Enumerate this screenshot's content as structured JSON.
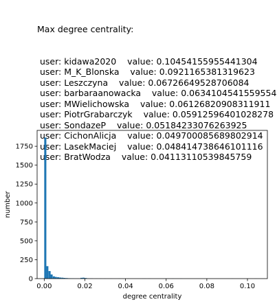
{
  "header": {
    "title": "Max degree centrality:",
    "entries": [
      {
        "user_label": "user:",
        "user": "kidawa2020",
        "value_label": "value:",
        "value": "0.10454155955441304"
      },
      {
        "user_label": "user:",
        "user": "M_K_Blonska",
        "value_label": "value:",
        "value": "0.0921165381319623"
      },
      {
        "user_label": "user:",
        "user": "Leszczyna",
        "value_label": "value:",
        "value": "0.06726649528706084"
      },
      {
        "user_label": "user:",
        "user": "barbaraanowacka",
        "value_label": "value:",
        "value": "0.06341045415595545"
      },
      {
        "user_label": "user:",
        "user": "MWielichowska",
        "value_label": "value:",
        "value": "0.06126820908311911"
      },
      {
        "user_label": "user:",
        "user": "PiotrGrabarczyk",
        "value_label": "value:",
        "value": "0.05912596401028278"
      },
      {
        "user_label": "user:",
        "user": "SondazeP",
        "value_label": "value:",
        "value": "0.05184233076263925"
      },
      {
        "user_label": "user:",
        "user": "CichonAlicja",
        "value_label": "value:",
        "value": "0.049700085689802914"
      },
      {
        "user_label": "user:",
        "user": "LasekMaciej",
        "value_label": "value:",
        "value": "0.048414738646101116"
      },
      {
        "user_label": "user:",
        "user": "BratWodza",
        "value_label": "value:",
        "value": "0.04113110539845759"
      }
    ]
  },
  "chart_data": {
    "type": "bar",
    "xlabel": "degree centrality",
    "ylabel": "number",
    "xlim": [
      -0.0035,
      0.1098
    ],
    "ylim": [
      0,
      1960
    ],
    "xticks": [
      0.0,
      0.02,
      0.04,
      0.06,
      0.08,
      0.1
    ],
    "xtick_labels": [
      "0.00",
      "0.02",
      "0.04",
      "0.06",
      "0.08",
      "0.10"
    ],
    "yticks": [
      0,
      250,
      500,
      750,
      1000,
      1250,
      1500,
      1750
    ],
    "ytick_labels": [
      "0",
      "250",
      "500",
      "750",
      "1000",
      "1250",
      "1500",
      "1750"
    ],
    "bin_width": 0.001045,
    "bins": [
      {
        "x": 0.0,
        "value": 1865
      },
      {
        "x": 0.001,
        "value": 165
      },
      {
        "x": 0.0021,
        "value": 100
      },
      {
        "x": 0.0031,
        "value": 55
      },
      {
        "x": 0.0042,
        "value": 30
      },
      {
        "x": 0.0052,
        "value": 22
      },
      {
        "x": 0.0063,
        "value": 18
      },
      {
        "x": 0.0073,
        "value": 14
      },
      {
        "x": 0.0084,
        "value": 12
      },
      {
        "x": 0.0094,
        "value": 9
      },
      {
        "x": 0.0105,
        "value": 7
      },
      {
        "x": 0.0115,
        "value": 5
      },
      {
        "x": 0.0125,
        "value": 4
      },
      {
        "x": 0.0136,
        "value": 3
      },
      {
        "x": 0.0146,
        "value": 2
      },
      {
        "x": 0.0157,
        "value": 2
      },
      {
        "x": 0.0167,
        "value": 2
      },
      {
        "x": 0.0178,
        "value": 10
      },
      {
        "x": 0.0188,
        "value": 12
      },
      {
        "x": 0.0199,
        "value": 8
      },
      {
        "x": 0.0209,
        "value": 3
      },
      {
        "x": 0.022,
        "value": 2
      },
      {
        "x": 0.023,
        "value": 2
      },
      {
        "x": 0.0251,
        "value": 1
      },
      {
        "x": 0.0272,
        "value": 1
      },
      {
        "x": 0.0293,
        "value": 1
      },
      {
        "x": 0.0324,
        "value": 1
      },
      {
        "x": 0.0366,
        "value": 1
      },
      {
        "x": 0.0408,
        "value": 1
      },
      {
        "x": 0.0481,
        "value": 1
      },
      {
        "x": 0.0491,
        "value": 1
      },
      {
        "x": 0.0512,
        "value": 1
      },
      {
        "x": 0.0585,
        "value": 1
      },
      {
        "x": 0.0606,
        "value": 1
      },
      {
        "x": 0.0627,
        "value": 1
      },
      {
        "x": 0.0669,
        "value": 1
      },
      {
        "x": 0.092,
        "value": 1
      },
      {
        "x": 0.1035,
        "value": 1
      }
    ],
    "bar_color": "#1f77b4"
  }
}
